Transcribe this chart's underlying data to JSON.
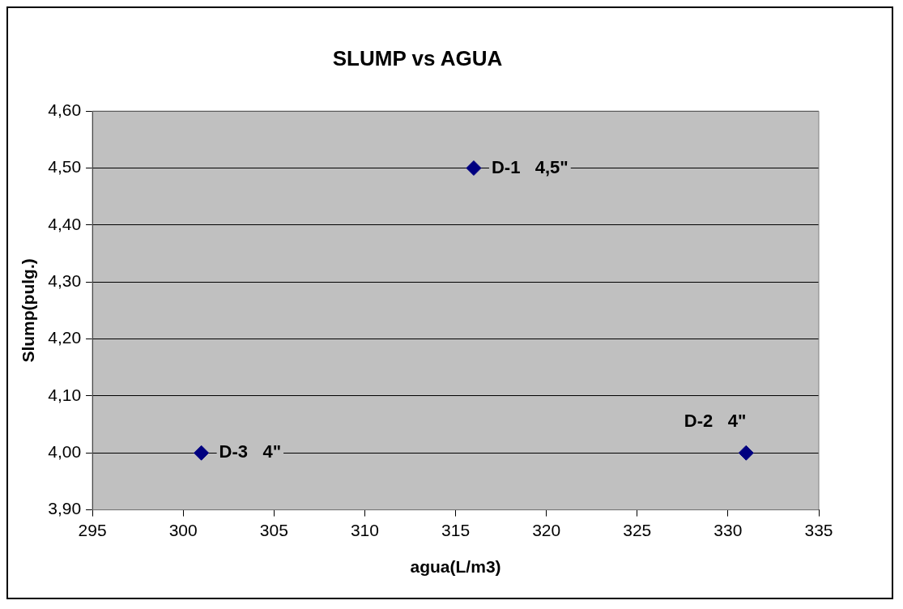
{
  "chart_data": {
    "type": "scatter",
    "title": "SLUMP vs AGUA",
    "xlabel": "agua(L/m3)",
    "ylabel": "Slump(pulg.)",
    "x": [
      301,
      316,
      331
    ],
    "series": [
      {
        "color": "#000080",
        "values": [
          4.0,
          4.5,
          4.0
        ]
      }
    ],
    "xlim": [
      295,
      335
    ],
    "xticks": [
      295,
      300,
      305,
      310,
      315,
      320,
      325,
      330,
      335
    ],
    "ylim": [
      3.9,
      4.6
    ],
    "yticks": [
      {
        "value": 3.9,
        "label": "3,90"
      },
      {
        "value": 4.0,
        "label": "4,00"
      },
      {
        "value": 4.1,
        "label": "4,10"
      },
      {
        "value": 4.2,
        "label": "4,20"
      },
      {
        "value": 4.3,
        "label": "4,30"
      },
      {
        "value": 4.4,
        "label": "4,40"
      },
      {
        "value": 4.5,
        "label": "4,50"
      },
      {
        "value": 4.6,
        "label": "4,60"
      }
    ],
    "grid": "y",
    "legend": false,
    "marker": "diamond",
    "annotations": [
      {
        "text": "D-3   4\"",
        "x": 301,
        "y": 4.0
      },
      {
        "text": "D-1   4,5\"",
        "x": 316,
        "y": 4.5
      },
      {
        "text": "D-2   4\"",
        "x": 331,
        "y": 4.0
      }
    ]
  }
}
